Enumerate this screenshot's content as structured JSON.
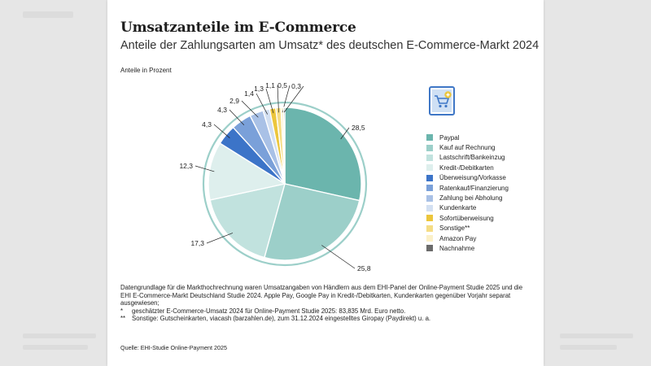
{
  "chart_data": {
    "type": "pie",
    "title": "Umsatzanteile im E-Commerce",
    "subtitle": "Anteile der Zahlungsarten am Umsatz* des deutschen E-Commerce-Markt 2024",
    "unit_label": "Anteile in Prozent",
    "start_angle_deg": 0,
    "direction": "clockwise",
    "legend_position": "right",
    "slices": [
      {
        "name": "Paypal",
        "value": 28.5,
        "label": "28,5",
        "color": "#6bb5ad"
      },
      {
        "name": "Kauf auf Rechnung",
        "value": 25.8,
        "label": "25,8",
        "color": "#9ccfc9"
      },
      {
        "name": "Lastschrift/Bankeinzug",
        "value": 17.3,
        "label": "17,3",
        "color": "#c1e2de"
      },
      {
        "name": "Kredit-/Debitkarten",
        "value": 12.3,
        "label": "12,3",
        "color": "#deefed"
      },
      {
        "name": "Überweisung/Vorkasse",
        "value": 4.3,
        "label": "4,3",
        "color": "#3c74c8"
      },
      {
        "name": "Ratenkauf/Finanzierung",
        "value": 4.3,
        "label": "4,3",
        "color": "#7aa0d9"
      },
      {
        "name": "Zahlung bei Abholung",
        "value": 2.9,
        "label": "2,9",
        "color": "#a9c1e6"
      },
      {
        "name": "Kundenkarte",
        "value": 1.4,
        "label": "1,4",
        "color": "#d3e0f2"
      },
      {
        "name": "Sofortüberweisung",
        "value": 1.3,
        "label": "1,3",
        "color": "#ecc63c"
      },
      {
        "name": "Sonstige**",
        "value": 1.1,
        "label": "1,1",
        "color": "#f5dd85"
      },
      {
        "name": "Amazon Pay",
        "value": 0.5,
        "label": "0,5",
        "color": "#fbf0c8"
      },
      {
        "name": "Nachnahme",
        "value": 0.3,
        "label": "0,3",
        "color": "#6b6b6b"
      }
    ]
  },
  "icon": {
    "name": "shopping-cart-icon",
    "color": "#3f77c6"
  },
  "notes": {
    "paragraph": "Datengrundlage für die Markthochrechnung waren Umsatzangaben von Händlern aus dem EHI-Panel der Online-Payment Studie 2025 und die EHI E-Commerce-Markt Deutschland Studie 2024. Apple Pay, Google Pay in Kredit-/Debitkarten, Kundenkarten gegenüber Vorjahr separat ausgewiesen;",
    "footnote1_mark": "*",
    "footnote1": "geschätzter E-Commerce-Umsatz 2024 für Online-Payment Studie 2025: 83,835 Mrd. Euro netto.",
    "footnote2_mark": "**",
    "footnote2": "Sonstige: Gutscheinkarten, viacash (barzahlen.de), zum 31.12.2024 eingestelltes Giropay (Paydirekt) u. a."
  },
  "source": "Quelle: EHI-Studie Online-Payment 2025"
}
